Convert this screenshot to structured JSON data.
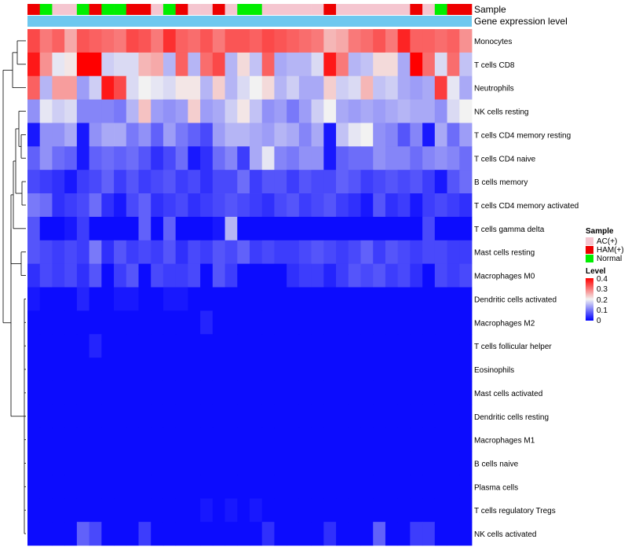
{
  "chart_data": {
    "type": "heatmap",
    "title": "",
    "annotation_tracks": [
      {
        "name": "Sample",
        "categories": [
          "AC(+)",
          "HAM(+)",
          "Normal"
        ],
        "colors": {
          "AC(+)": "#f5c6d0",
          "HAM(+)": "#ee0000",
          "Normal": "#00ee00"
        }
      },
      {
        "name": "Gene expression level",
        "color": "#6ec8ef"
      }
    ],
    "sample_groups": [
      "HAM(+)",
      "Normal",
      "AC(+)",
      "AC(+)",
      "Normal",
      "HAM(+)",
      "Normal",
      "Normal",
      "HAM(+)",
      "HAM(+)",
      "AC(+)",
      "Normal",
      "HAM(+)",
      "AC(+)",
      "AC(+)",
      "HAM(+)",
      "AC(+)",
      "Normal",
      "Normal",
      "AC(+)",
      "AC(+)",
      "AC(+)",
      "AC(+)",
      "AC(+)",
      "HAM(+)",
      "AC(+)",
      "AC(+)",
      "AC(+)",
      "AC(+)",
      "AC(+)",
      "AC(+)",
      "HAM(+)",
      "AC(+)",
      "Normal",
      "HAM(+)",
      "HAM(+)"
    ],
    "rows": [
      "Monocytes",
      "T cells CD8",
      "Neutrophils",
      "NK cells resting",
      "T cells CD4 memory resting",
      "T cells CD4 naive",
      "B cells memory",
      "T cells CD4 memory activated",
      "T cells gamma delta",
      "Mast cells resting",
      "Macrophages M0",
      "Dendritic cells activated",
      "Macrophages M2",
      "T cells follicular helper",
      "Eosinophils",
      "Mast cells activated",
      "Dendritic cells resting",
      "Macrophages M1",
      "B cells naive",
      "Plasma cells",
      "T cells regulatory  Tregs",
      "NK cells activated"
    ],
    "values": [
      [
        0.34,
        0.3,
        0.32,
        0.26,
        0.33,
        0.32,
        0.31,
        0.3,
        0.34,
        0.33,
        0.3,
        0.36,
        0.32,
        0.31,
        0.33,
        0.3,
        0.33,
        0.33,
        0.32,
        0.34,
        0.33,
        0.32,
        0.31,
        0.3,
        0.25,
        0.26,
        0.3,
        0.31,
        0.33,
        0.3,
        0.37,
        0.32,
        0.32,
        0.31,
        0.32,
        0.28
      ],
      [
        0.38,
        0.28,
        0.19,
        0.21,
        0.4,
        0.4,
        0.17,
        0.18,
        0.18,
        0.25,
        0.26,
        0.15,
        0.32,
        0.15,
        0.31,
        0.34,
        0.15,
        0.22,
        0.16,
        0.32,
        0.14,
        0.15,
        0.15,
        0.18,
        0.38,
        0.3,
        0.15,
        0.16,
        0.22,
        0.22,
        0.14,
        0.4,
        0.31,
        0.18,
        0.31,
        0.16
      ],
      [
        0.32,
        0.15,
        0.27,
        0.27,
        0.13,
        0.17,
        0.38,
        0.34,
        0.18,
        0.2,
        0.19,
        0.18,
        0.21,
        0.21,
        0.15,
        0.23,
        0.15,
        0.18,
        0.2,
        0.22,
        0.15,
        0.17,
        0.14,
        0.14,
        0.23,
        0.17,
        0.18,
        0.25,
        0.16,
        0.17,
        0.14,
        0.13,
        0.14,
        0.35,
        0.19,
        0.14
      ],
      [
        0.12,
        0.19,
        0.17,
        0.18,
        0.11,
        0.11,
        0.11,
        0.1,
        0.15,
        0.24,
        0.13,
        0.12,
        0.13,
        0.23,
        0.13,
        0.14,
        0.17,
        0.21,
        0.16,
        0.12,
        0.13,
        0.1,
        0.13,
        0.17,
        0.2,
        0.14,
        0.13,
        0.14,
        0.13,
        0.14,
        0.15,
        0.14,
        0.14,
        0.12,
        0.18,
        0.2
      ],
      [
        0.02,
        0.12,
        0.12,
        0.14,
        0.02,
        0.12,
        0.14,
        0.14,
        0.1,
        0.12,
        0.08,
        0.13,
        0.1,
        0.08,
        0.06,
        0.13,
        0.15,
        0.15,
        0.14,
        0.13,
        0.15,
        0.14,
        0.11,
        0.14,
        0.02,
        0.16,
        0.19,
        0.2,
        0.12,
        0.11,
        0.07,
        0.11,
        0.02,
        0.14,
        0.09,
        0.13
      ],
      [
        0.08,
        0.12,
        0.09,
        0.08,
        0.02,
        0.08,
        0.09,
        0.08,
        0.09,
        0.07,
        0.04,
        0.06,
        0.09,
        0.02,
        0.04,
        0.09,
        0.11,
        0.05,
        0.14,
        0.19,
        0.11,
        0.1,
        0.12,
        0.12,
        0.02,
        0.08,
        0.09,
        0.09,
        0.12,
        0.11,
        0.11,
        0.09,
        0.11,
        0.12,
        0.11,
        0.09
      ],
      [
        0.06,
        0.05,
        0.04,
        0.02,
        0.05,
        0.06,
        0.08,
        0.05,
        0.07,
        0.05,
        0.06,
        0.07,
        0.05,
        0.06,
        0.04,
        0.06,
        0.06,
        0.09,
        0.05,
        0.07,
        0.07,
        0.05,
        0.07,
        0.06,
        0.06,
        0.08,
        0.07,
        0.05,
        0.06,
        0.07,
        0.06,
        0.07,
        0.05,
        0.02,
        0.07,
        0.09
      ],
      [
        0.1,
        0.09,
        0.04,
        0.05,
        0.06,
        0.09,
        0.04,
        0.02,
        0.06,
        0.08,
        0.04,
        0.05,
        0.06,
        0.04,
        0.05,
        0.06,
        0.07,
        0.06,
        0.05,
        0.04,
        0.06,
        0.07,
        0.05,
        0.06,
        0.07,
        0.05,
        0.04,
        0.02,
        0.07,
        0.04,
        0.05,
        0.02,
        0.05,
        0.06,
        0.05,
        0.04
      ],
      [
        0.07,
        0.01,
        0.01,
        0.02,
        0.05,
        0.01,
        0.01,
        0.01,
        0.01,
        0.08,
        0.01,
        0.08,
        0.01,
        0.01,
        0.01,
        0.02,
        0.15,
        0.01,
        0.01,
        0.01,
        0.01,
        0.01,
        0.01,
        0.01,
        0.01,
        0.01,
        0.01,
        0.01,
        0.01,
        0.01,
        0.01,
        0.01,
        0.06,
        0.01,
        0.01,
        0.01
      ],
      [
        0.07,
        0.06,
        0.05,
        0.06,
        0.05,
        0.1,
        0.04,
        0.07,
        0.05,
        0.06,
        0.05,
        0.07,
        0.04,
        0.06,
        0.05,
        0.07,
        0.06,
        0.08,
        0.05,
        0.06,
        0.05,
        0.05,
        0.06,
        0.07,
        0.06,
        0.05,
        0.06,
        0.08,
        0.05,
        0.07,
        0.06,
        0.05,
        0.06,
        0.06,
        0.05,
        0.05
      ],
      [
        0.04,
        0.06,
        0.05,
        0.06,
        0.04,
        0.07,
        0.01,
        0.05,
        0.07,
        0.01,
        0.06,
        0.05,
        0.05,
        0.06,
        0.01,
        0.07,
        0.05,
        0.01,
        0.01,
        0.01,
        0.01,
        0.04,
        0.05,
        0.05,
        0.03,
        0.05,
        0.07,
        0.06,
        0.07,
        0.05,
        0.06,
        0.04,
        0.01,
        0.06,
        0.05,
        0.06
      ],
      [
        0.02,
        0.01,
        0.01,
        0.01,
        0.03,
        0.01,
        0.01,
        0.02,
        0.02,
        0.01,
        0.01,
        0.02,
        0.02,
        0.01,
        0.01,
        0.01,
        0.01,
        0.01,
        0.01,
        0.01,
        0.01,
        0.01,
        0.01,
        0.01,
        0.01,
        0.01,
        0.01,
        0.01,
        0.01,
        0.01,
        0.01,
        0.01,
        0.01,
        0.01,
        0.01,
        0.01
      ],
      [
        0.01,
        0.01,
        0.01,
        0.01,
        0.01,
        0.01,
        0.01,
        0.01,
        0.01,
        0.01,
        0.01,
        0.01,
        0.01,
        0.01,
        0.03,
        0.01,
        0.01,
        0.01,
        0.01,
        0.01,
        0.01,
        0.01,
        0.01,
        0.01,
        0.01,
        0.01,
        0.01,
        0.01,
        0.01,
        0.01,
        0.01,
        0.01,
        0.01,
        0.01,
        0.01,
        0.01
      ],
      [
        0.01,
        0.01,
        0.01,
        0.01,
        0.01,
        0.03,
        0.01,
        0.01,
        0.01,
        0.01,
        0.01,
        0.01,
        0.01,
        0.01,
        0.01,
        0.01,
        0.01,
        0.01,
        0.01,
        0.01,
        0.01,
        0.01,
        0.01,
        0.01,
        0.01,
        0.01,
        0.01,
        0.01,
        0.01,
        0.01,
        0.01,
        0.01,
        0.01,
        0.01,
        0.01,
        0.01
      ],
      [
        0.01,
        0.01,
        0.01,
        0.01,
        0.01,
        0.01,
        0.01,
        0.01,
        0.01,
        0.01,
        0.01,
        0.01,
        0.01,
        0.01,
        0.01,
        0.01,
        0.01,
        0.01,
        0.01,
        0.01,
        0.01,
        0.01,
        0.01,
        0.01,
        0.01,
        0.01,
        0.01,
        0.01,
        0.01,
        0.01,
        0.01,
        0.01,
        0.01,
        0.01,
        0.01,
        0.01
      ],
      [
        0.01,
        0.01,
        0.01,
        0.01,
        0.01,
        0.01,
        0.01,
        0.01,
        0.01,
        0.01,
        0.01,
        0.01,
        0.01,
        0.01,
        0.01,
        0.01,
        0.01,
        0.01,
        0.01,
        0.01,
        0.01,
        0.01,
        0.01,
        0.01,
        0.01,
        0.01,
        0.01,
        0.01,
        0.01,
        0.01,
        0.01,
        0.01,
        0.01,
        0.01,
        0.01,
        0.01
      ],
      [
        0.01,
        0.01,
        0.01,
        0.01,
        0.01,
        0.01,
        0.01,
        0.01,
        0.01,
        0.01,
        0.01,
        0.01,
        0.01,
        0.01,
        0.01,
        0.01,
        0.01,
        0.01,
        0.01,
        0.01,
        0.01,
        0.01,
        0.01,
        0.01,
        0.01,
        0.01,
        0.01,
        0.01,
        0.01,
        0.01,
        0.01,
        0.01,
        0.01,
        0.01,
        0.01,
        0.01
      ],
      [
        0.01,
        0.01,
        0.01,
        0.01,
        0.01,
        0.01,
        0.01,
        0.01,
        0.01,
        0.01,
        0.01,
        0.01,
        0.01,
        0.01,
        0.01,
        0.01,
        0.01,
        0.01,
        0.01,
        0.01,
        0.01,
        0.01,
        0.01,
        0.01,
        0.01,
        0.01,
        0.01,
        0.01,
        0.01,
        0.01,
        0.01,
        0.01,
        0.01,
        0.01,
        0.01,
        0.01
      ],
      [
        0.01,
        0.01,
        0.01,
        0.01,
        0.01,
        0.01,
        0.01,
        0.01,
        0.01,
        0.01,
        0.01,
        0.01,
        0.01,
        0.01,
        0.01,
        0.01,
        0.01,
        0.01,
        0.01,
        0.01,
        0.01,
        0.01,
        0.01,
        0.01,
        0.01,
        0.01,
        0.01,
        0.01,
        0.01,
        0.01,
        0.01,
        0.01,
        0.01,
        0.01,
        0.01,
        0.01
      ],
      [
        0.01,
        0.01,
        0.01,
        0.01,
        0.01,
        0.01,
        0.01,
        0.01,
        0.01,
        0.01,
        0.01,
        0.01,
        0.01,
        0.01,
        0.01,
        0.01,
        0.01,
        0.01,
        0.01,
        0.01,
        0.01,
        0.01,
        0.01,
        0.01,
        0.01,
        0.01,
        0.01,
        0.01,
        0.01,
        0.01,
        0.01,
        0.01,
        0.01,
        0.01,
        0.01,
        0.01
      ],
      [
        0.01,
        0.01,
        0.01,
        0.01,
        0.01,
        0.01,
        0.01,
        0.01,
        0.01,
        0.01,
        0.01,
        0.01,
        0.01,
        0.01,
        0.02,
        0.01,
        0.02,
        0.01,
        0.02,
        0.01,
        0.01,
        0.01,
        0.01,
        0.01,
        0.01,
        0.01,
        0.01,
        0.01,
        0.01,
        0.01,
        0.01,
        0.01,
        0.01,
        0.01,
        0.01,
        0.01
      ],
      [
        0.01,
        0.01,
        0.01,
        0.01,
        0.08,
        0.06,
        0.01,
        0.01,
        0.01,
        0.05,
        0.01,
        0.01,
        0.01,
        0.01,
        0.01,
        0.01,
        0.01,
        0.01,
        0.01,
        0.04,
        0.01,
        0.01,
        0.01,
        0.01,
        0.04,
        0.01,
        0.01,
        0.01,
        0.08,
        0.01,
        0.01,
        0.05,
        0.05,
        0.01,
        0.01,
        0.01
      ]
    ],
    "color_scale": {
      "min": 0,
      "mid": 0.2,
      "max": 0.4,
      "low_color": "#0000ff",
      "mid_color": "#f2f2f2",
      "high_color": "#ff0000"
    },
    "legend": {
      "position": "right",
      "sample_title": "Sample",
      "sample_entries": [
        "AC(+)",
        "HAM(+)",
        "Normal"
      ],
      "level_title": "Level",
      "level_ticks": [
        "0.4",
        "0.3",
        "0.2",
        "0.1",
        "0"
      ]
    },
    "dendrogram": "left"
  }
}
